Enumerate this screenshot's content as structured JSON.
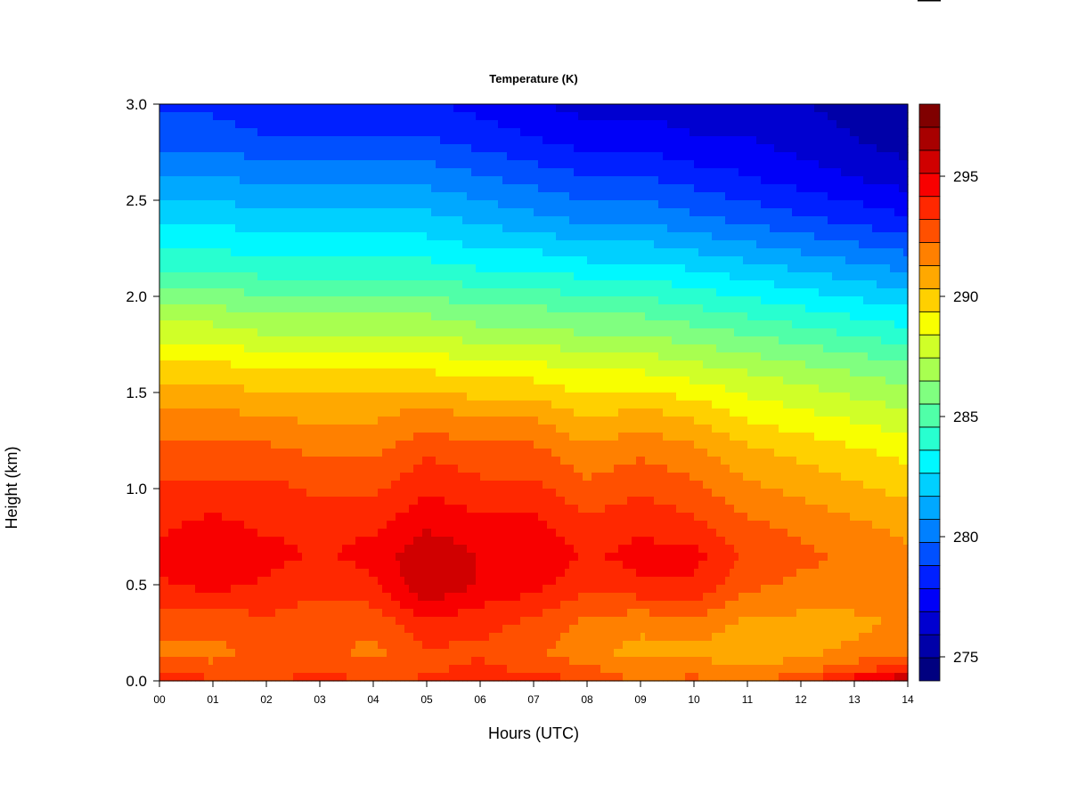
{
  "chart_data": {
    "type": "heatmap",
    "title": "Temperature (K)",
    "xlabel": "Hours (UTC)",
    "ylabel": "Height (km)",
    "xlim": [
      0,
      14
    ],
    "ylim": [
      0,
      3
    ],
    "x_tick_labels": [
      "00",
      "01",
      "02",
      "03",
      "04",
      "05",
      "06",
      "07",
      "08",
      "09",
      "10",
      "11",
      "12",
      "13",
      "14"
    ],
    "y_tick_labels": [
      "0.0",
      "0.5",
      "1.0",
      "1.5",
      "2.0",
      "2.5",
      "3.0"
    ],
    "colorbar": {
      "range": [
        274,
        298
      ],
      "levels": 24,
      "tick_values": [
        275,
        280,
        285,
        290,
        295
      ],
      "tick_labels": [
        "275",
        "280",
        "285",
        "290",
        "295"
      ],
      "colors": [
        "#000080",
        "#0000a8",
        "#0000d0",
        "#0000f8",
        "#0020ff",
        "#0050ff",
        "#0080ff",
        "#00a8ff",
        "#00d0ff",
        "#00f8ff",
        "#28ffd0",
        "#50ffa8",
        "#80ff80",
        "#a8ff50",
        "#d0ff28",
        "#f8ff00",
        "#ffd000",
        "#ffa800",
        "#ff8000",
        "#ff5000",
        "#ff2800",
        "#f80000",
        "#d00000",
        "#a80000",
        "#800000"
      ]
    },
    "z_units": "K",
    "heights_km": [
      0.0,
      0.05,
      0.15,
      0.3,
      0.5,
      0.65,
      0.8,
      1.0,
      1.2,
      1.4,
      1.6,
      1.8,
      2.0,
      2.2,
      2.4,
      2.6,
      2.8,
      3.0
    ],
    "hours": [
      0,
      1,
      2,
      3,
      4,
      5,
      6,
      7,
      8,
      9,
      10,
      11,
      12,
      13,
      14
    ],
    "temperature_grid": [
      [
        294.5,
        293.5,
        293.0,
        294.0,
        293.0,
        293.5,
        294.0,
        294.0,
        293.0,
        292.0,
        292.5,
        292.0,
        293.0,
        295.0,
        296.5
      ],
      [
        293.0,
        292.5,
        292.5,
        293.0,
        292.5,
        293.0,
        293.5,
        293.0,
        292.5,
        292.0,
        292.0,
        291.5,
        292.0,
        293.0,
        294.0
      ],
      [
        292.0,
        292.0,
        292.5,
        292.5,
        292.0,
        293.0,
        293.0,
        292.5,
        291.5,
        291.0,
        291.0,
        290.5,
        291.0,
        291.5,
        292.0
      ],
      [
        292.5,
        292.5,
        293.0,
        292.5,
        292.5,
        294.0,
        293.5,
        293.0,
        292.0,
        291.5,
        292.0,
        291.0,
        291.0,
        291.0,
        291.5
      ],
      [
        294.0,
        294.5,
        294.0,
        293.5,
        294.0,
        296.0,
        295.0,
        294.5,
        293.5,
        294.0,
        294.0,
        292.5,
        292.0,
        292.0,
        292.0
      ],
      [
        294.5,
        295.0,
        294.5,
        294.0,
        294.5,
        296.0,
        295.0,
        295.0,
        294.0,
        294.5,
        294.5,
        293.0,
        292.5,
        292.0,
        291.5
      ],
      [
        294.0,
        294.5,
        294.0,
        294.0,
        294.0,
        295.0,
        294.5,
        294.5,
        293.5,
        294.0,
        293.5,
        292.5,
        292.0,
        291.5,
        291.0
      ],
      [
        293.5,
        293.5,
        293.5,
        293.0,
        293.0,
        294.0,
        293.5,
        293.5,
        292.5,
        293.0,
        292.5,
        291.5,
        291.0,
        290.5,
        290.0
      ],
      [
        292.5,
        292.5,
        292.5,
        292.0,
        292.0,
        293.0,
        292.5,
        292.5,
        291.5,
        292.0,
        291.5,
        290.5,
        290.0,
        289.5,
        289.0
      ],
      [
        291.5,
        291.5,
        291.0,
        291.0,
        291.0,
        291.5,
        291.0,
        291.0,
        290.0,
        290.5,
        290.0,
        289.0,
        288.5,
        288.0,
        287.5
      ],
      [
        290.0,
        290.0,
        289.5,
        289.5,
        289.5,
        289.5,
        289.0,
        289.0,
        288.5,
        288.5,
        288.0,
        287.5,
        287.0,
        286.5,
        286.0
      ],
      [
        288.0,
        288.0,
        287.5,
        287.5,
        287.5,
        287.5,
        287.0,
        287.0,
        286.5,
        286.5,
        286.0,
        285.5,
        285.0,
        284.5,
        284.0
      ],
      [
        286.0,
        286.0,
        285.5,
        285.5,
        285.5,
        285.5,
        285.0,
        285.0,
        284.5,
        284.5,
        284.0,
        283.5,
        283.0,
        282.5,
        282.0
      ],
      [
        284.0,
        284.0,
        283.5,
        283.5,
        283.5,
        283.5,
        283.0,
        283.0,
        282.5,
        282.5,
        282.0,
        281.5,
        281.0,
        280.5,
        280.0
      ],
      [
        282.5,
        282.5,
        282.0,
        282.0,
        282.0,
        282.0,
        281.5,
        281.0,
        280.5,
        280.5,
        280.0,
        279.5,
        279.0,
        278.5,
        278.0
      ],
      [
        281.0,
        281.0,
        280.5,
        280.5,
        280.5,
        280.5,
        280.0,
        279.5,
        279.0,
        279.0,
        278.5,
        278.0,
        277.5,
        277.0,
        276.5
      ],
      [
        279.5,
        279.5,
        279.0,
        279.0,
        279.0,
        279.0,
        278.5,
        278.0,
        277.5,
        277.5,
        277.0,
        277.0,
        276.5,
        276.0,
        275.5
      ],
      [
        278.5,
        278.5,
        278.0,
        278.0,
        278.0,
        278.0,
        277.5,
        277.0,
        276.5,
        276.5,
        276.5,
        276.5,
        276.0,
        275.5,
        275.0
      ]
    ]
  }
}
